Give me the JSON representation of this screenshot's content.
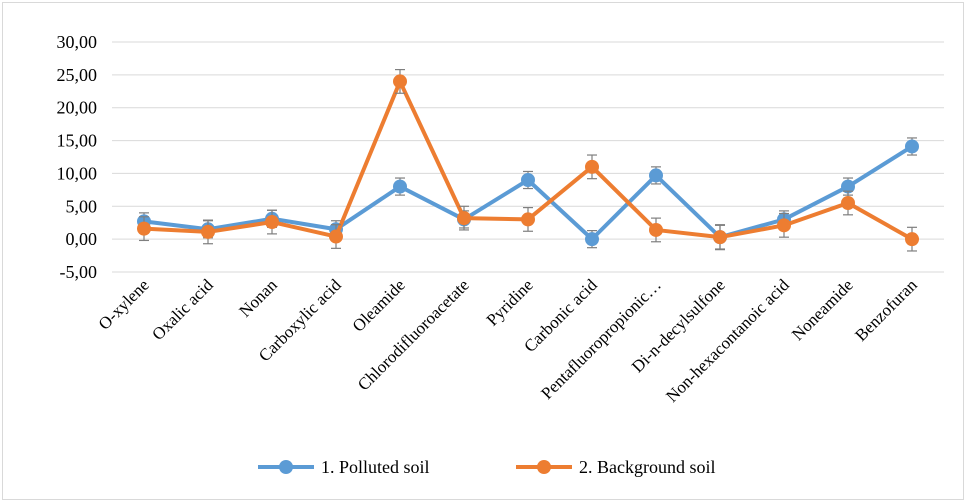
{
  "chart_data": {
    "type": "line",
    "categories": [
      "O-xylene",
      "Oxalic acid",
      "Nonan",
      "Carboxylic acid",
      "Oleamide",
      "Chlorodifluoroacetate",
      "Pyridine",
      "Carbonic acid",
      "Pentafluoropropionic…",
      "Di-n-decylsulfone",
      "Non-hexacontanoic acid",
      "Noneamide",
      "Benzofuran"
    ],
    "series": [
      {
        "name": "1. Polluted soil",
        "color": "#5b9bd5",
        "values": [
          2.7,
          1.5,
          3.1,
          1.5,
          8.0,
          3.0,
          9.0,
          0.0,
          9.7,
          0.3,
          3.0,
          8.0,
          14.1
        ],
        "errors": [
          1.3,
          1.3,
          1.3,
          1.3,
          1.3,
          1.3,
          1.3,
          1.3,
          1.3,
          1.9,
          1.3,
          1.3,
          1.3
        ]
      },
      {
        "name": "2. Background soil",
        "color": "#ed7d31",
        "values": [
          1.6,
          1.1,
          2.6,
          0.4,
          24.0,
          3.2,
          3.0,
          11.0,
          1.4,
          0.3,
          2.1,
          5.5,
          0.0
        ],
        "errors": [
          1.8,
          1.8,
          1.8,
          1.8,
          1.8,
          1.8,
          1.8,
          1.8,
          1.8,
          1.8,
          1.8,
          1.8,
          1.8
        ]
      }
    ],
    "ylim": [
      -5,
      30
    ],
    "yticks": [
      "30,00",
      "25,00",
      "20,00",
      "15,00",
      "10,00",
      "5,00",
      "0,00",
      "-5,00"
    ],
    "ytick_values": [
      30,
      25,
      20,
      15,
      10,
      5,
      0,
      -5
    ],
    "grid": true,
    "legend": "bottom"
  }
}
